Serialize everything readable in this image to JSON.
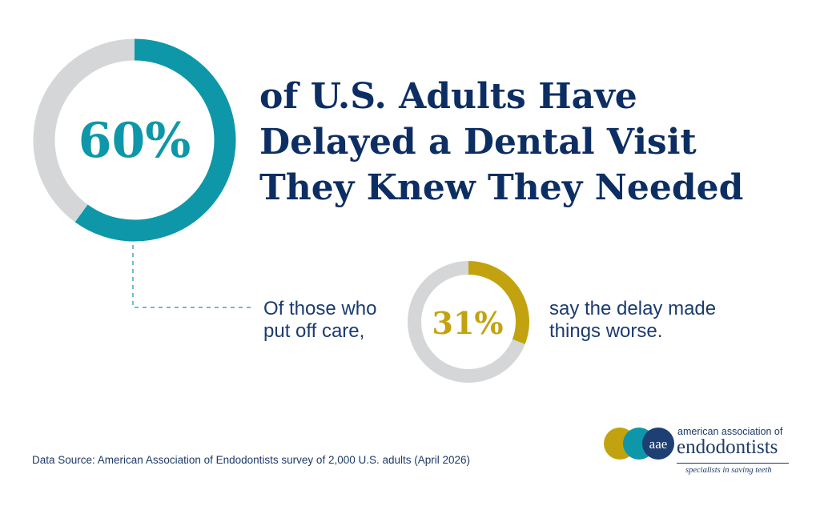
{
  "chart_data": [
    {
      "type": "pie",
      "style": "donut",
      "slices": [
        {
          "label": "Delayed a dental visit",
          "value": 60,
          "color": "#0e97a8"
        },
        {
          "label": "",
          "value": 40,
          "color": "#d5d6d8"
        }
      ],
      "center_label": "60%",
      "title": "of U.S. Adults Have Delayed a Dental Visit They Knew They Needed"
    },
    {
      "type": "pie",
      "style": "donut",
      "slices": [
        {
          "label": "Delay made things worse",
          "value": 31,
          "color": "#c2a30f"
        },
        {
          "label": "",
          "value": 69,
          "color": "#d5d6d8"
        }
      ],
      "center_label": "31%"
    }
  ],
  "headline": {
    "line1": "of U.S. Adults Have",
    "line2": "Delayed a Dental Visit",
    "line3": "They Knew They Needed"
  },
  "sub_left": {
    "line1": "Of those who",
    "line2": "put off care,"
  },
  "sub_right": {
    "line1": "say the delay made",
    "line2": "things worse."
  },
  "source": "Data Source: American Association of Endodontists survey of 2,000 U.S. adults (April 2026)",
  "logo": {
    "mark_letters": "aae",
    "line1": "american association of",
    "line2": "endodontists",
    "tagline": "specialists in saving teeth"
  },
  "colors": {
    "teal": "#0e97a8",
    "gold": "#c2a30f",
    "gray": "#d5d6d8",
    "navy": "#0d2e63",
    "dark_blue_dot": "#1e3f73"
  }
}
